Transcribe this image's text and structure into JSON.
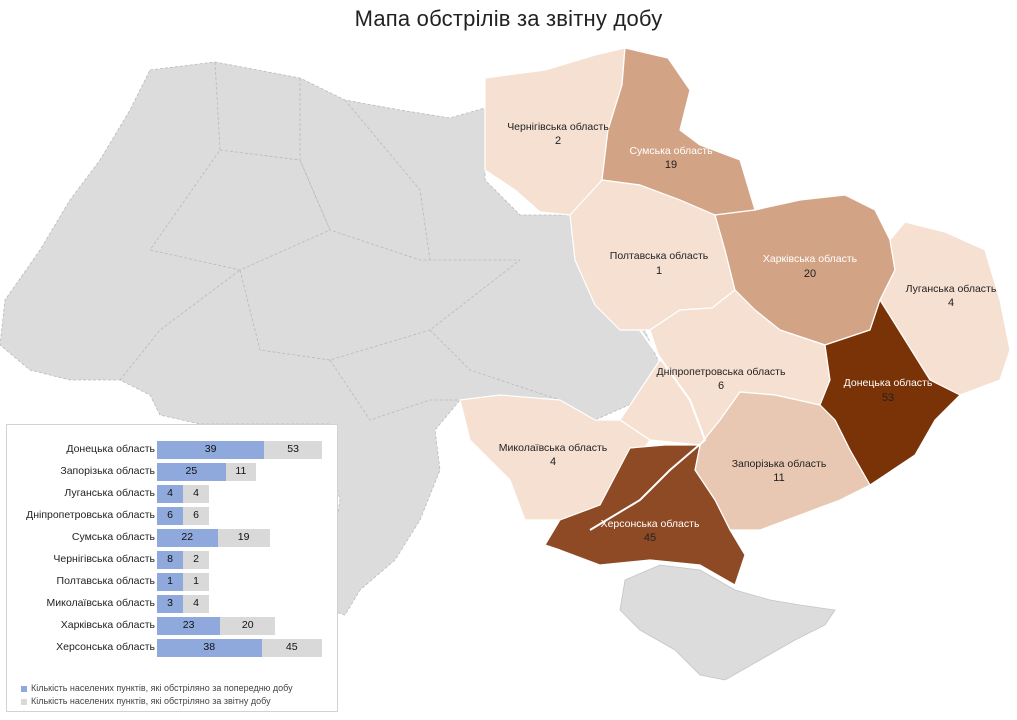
{
  "title": "Мапа обстрілів за звітну добу",
  "colors": {
    "gray": "#dcdcdc",
    "shade_light": "#f6e0d2",
    "shade_mid": "#d3a385",
    "shade_dark": "#8e4a24",
    "shade_darkest": "#7a3306",
    "bar_prev": "#8fa9dc",
    "bar_cur": "#d9d9d9"
  },
  "regions": [
    {
      "key": "chernihiv",
      "name": "Чернігівська область",
      "count": "2"
    },
    {
      "key": "sumy",
      "name": "Сумська область",
      "count": "19"
    },
    {
      "key": "poltava",
      "name": "Полтавська область",
      "count": "1"
    },
    {
      "key": "kharkiv",
      "name": "Харківська область",
      "count": "20"
    },
    {
      "key": "luhansk",
      "name": "Луганська область",
      "count": "4"
    },
    {
      "key": "dnipro",
      "name": "Дніпропетровська область",
      "count": "6"
    },
    {
      "key": "donetsk",
      "name": "Донецька область",
      "count": "53"
    },
    {
      "key": "mykolaiv",
      "name": "Миколаївська область",
      "count": "4"
    },
    {
      "key": "zaporizhzhia",
      "name": "Запорізька область",
      "count": "11"
    },
    {
      "key": "kherson",
      "name": "Херсонська область",
      "count": "45"
    }
  ],
  "chart_data": {
    "type": "bar",
    "orientation": "horizontal",
    "stacked": true,
    "categories": [
      "Донецька область",
      "Запорізька область",
      "Луганська область",
      "Дніпропетровська область",
      "Сумська область",
      "Чернігівська  область",
      "Полтавська область",
      "Миколаївська область",
      "Харківська область",
      "Херсонська область"
    ],
    "series": [
      {
        "name": "Кількість населених пунктів, які обстріляно за попередню добу",
        "values": [
          39,
          25,
          4,
          6,
          22,
          8,
          1,
          3,
          23,
          38
        ]
      },
      {
        "name": "Кількість населених пунктів, які обстріляно за звітну добу",
        "values": [
          53,
          11,
          4,
          6,
          19,
          2,
          1,
          4,
          20,
          45
        ]
      }
    ],
    "series_labels": {
      "prev": [
        "39",
        "25",
        "4",
        "6",
        "22",
        "8",
        "1",
        "3",
        "23",
        "38"
      ],
      "cur": [
        "53",
        "11",
        "4",
        "6",
        "19",
        "2",
        "1",
        "4",
        "20",
        "45"
      ]
    },
    "legend_position": "bottom",
    "grid": false
  },
  "legend": {
    "prev": "Кількість населених пунктів, які обстріляно за попередню добу",
    "cur": "Кількість населених пунктів, які обстріляно за звітну добу"
  }
}
